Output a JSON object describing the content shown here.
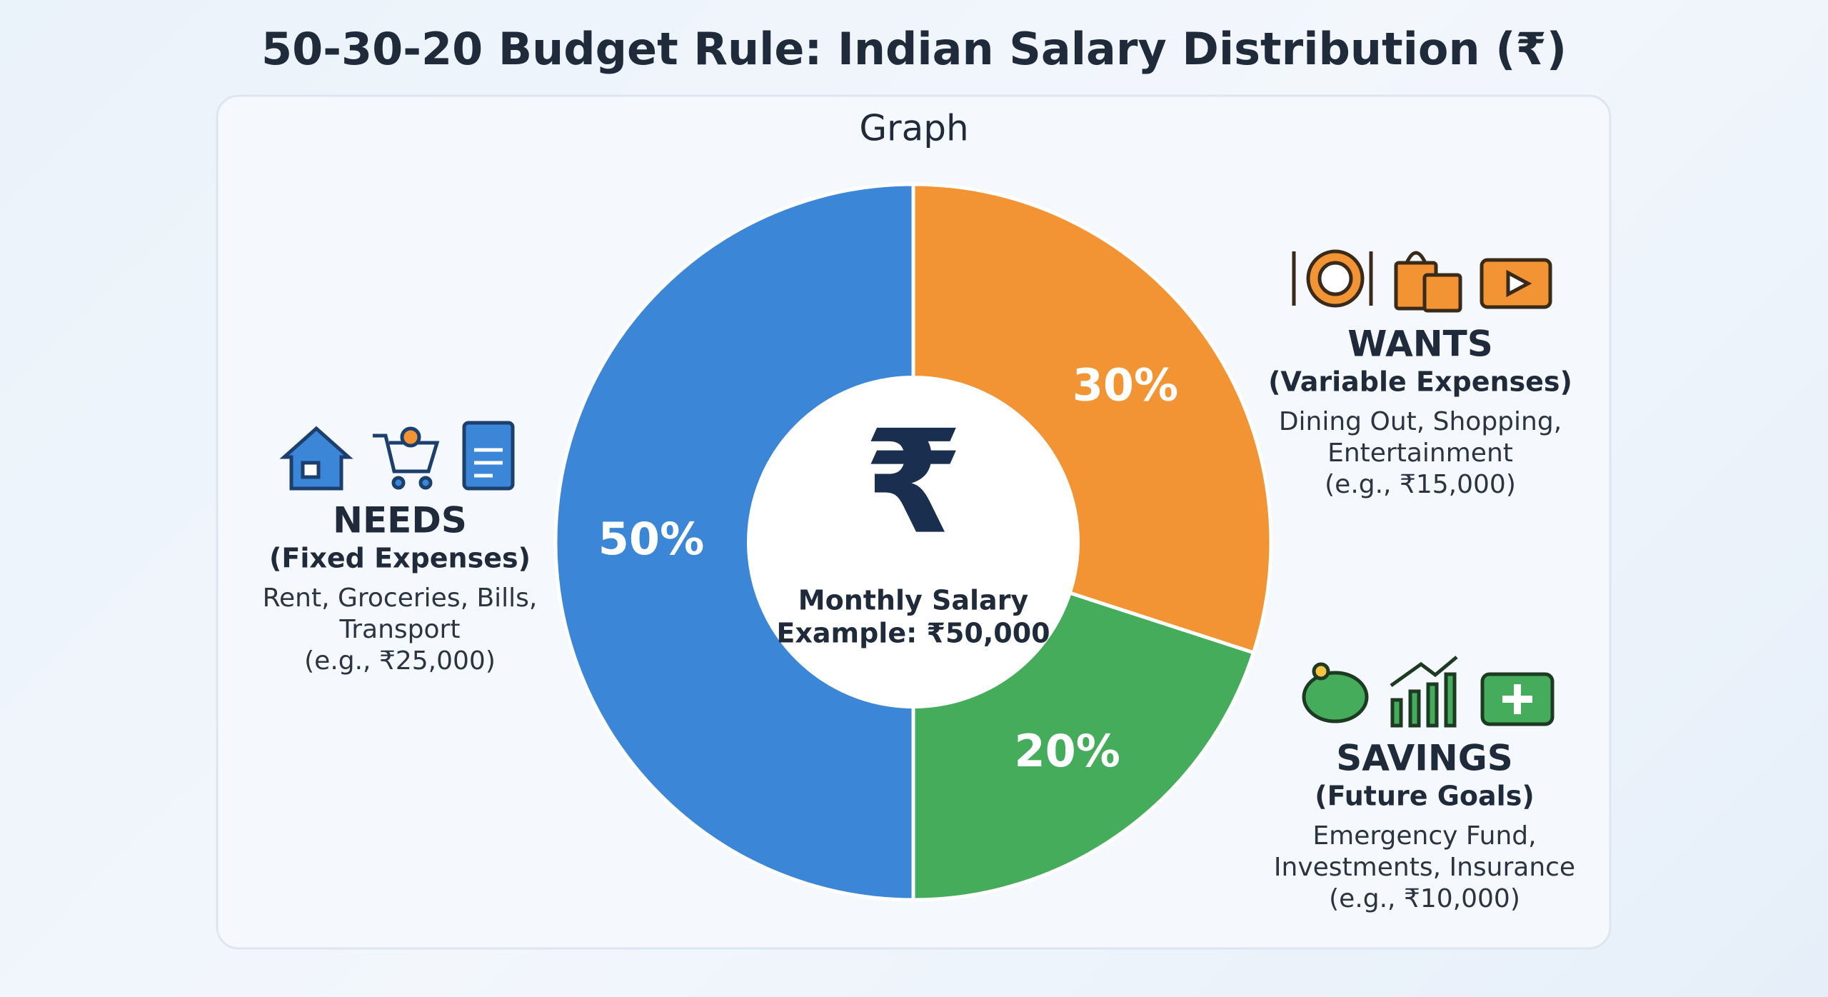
{
  "chart_data": {
    "type": "pie",
    "title": "50-30-20 Budget Rule: Indian Salary Distribution (₹)",
    "subtitle": "Graph",
    "center_symbol": "₹",
    "center_lines": [
      "Monthly Salary",
      "Example: ₹50,000"
    ],
    "categories": [
      "NEEDS",
      "WANTS",
      "SAVINGS"
    ],
    "values": [
      50,
      30,
      20
    ],
    "value_labels": [
      "50%",
      "30%",
      "20%"
    ],
    "colors": [
      "#3b86d6",
      "#f29433",
      "#45ac5b"
    ],
    "category_subtitles": [
      "(Fixed Expenses)",
      "(Variable Expenses)",
      "(Future Goals)"
    ],
    "category_lines": [
      [
        "Rent, Groceries, Bills,",
        "Transport",
        "(e.g., ₹25,000)"
      ],
      [
        "Dining Out, Shopping,",
        "Entertainment",
        "(e.g., ₹15,000)"
      ],
      [
        "Emergency Fund,",
        "Investments, Insurance",
        "(e.g., ₹10,000)"
      ]
    ]
  }
}
